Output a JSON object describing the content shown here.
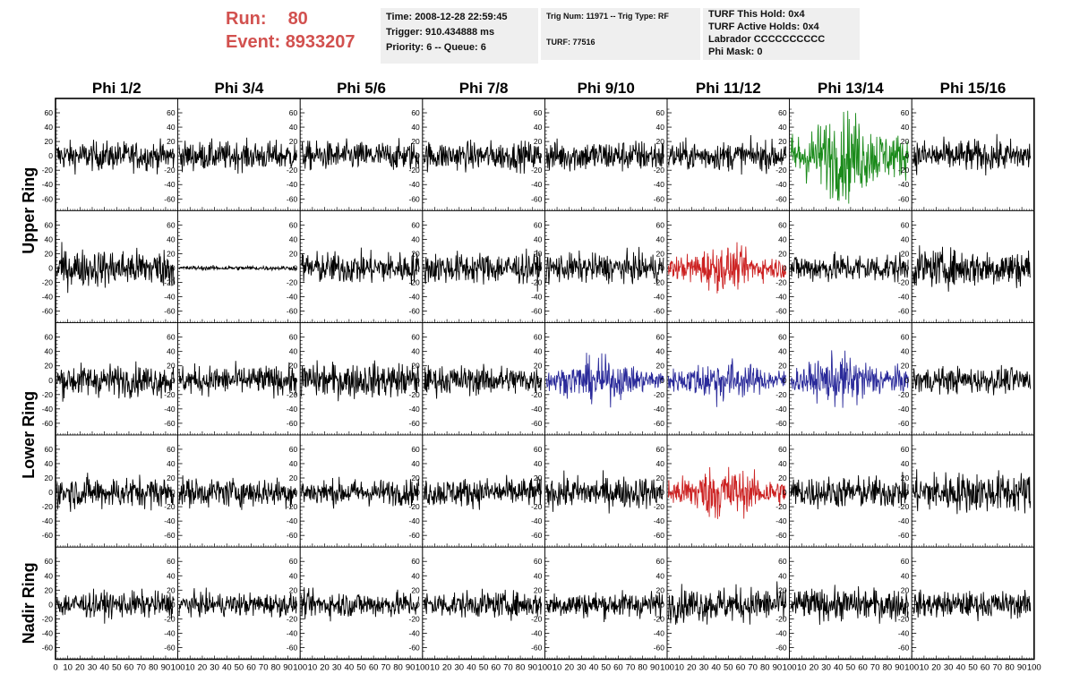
{
  "header": {
    "run_label": "Run:",
    "run_value": "80",
    "event_label": "Event:",
    "event_value": "8933207",
    "time": "Time: 2008-12-28 22:59:45",
    "trigger": "Trigger: 910.434888 ms",
    "priority": "Priority: 6 -- Queue: 6",
    "trig_num": "Trig Num: 11971 -- Trig Type: RF",
    "turf": "TURF: 77516",
    "turf_hold": "TURF This Hold: 0x4",
    "turf_active": "TURF Active Holds: 0x4",
    "labrador": "Labrador CCCCCCCCCC",
    "phi_mask": "Phi Mask: 0"
  },
  "chart_data": {
    "type": "line",
    "columns": [
      "Phi 1/2",
      "Phi 3/4",
      "Phi 5/6",
      "Phi 7/8",
      "Phi 9/10",
      "Phi 11/12",
      "Phi 13/14",
      "Phi 15/16"
    ],
    "row_labels": [
      "Upper Ring",
      "Lower Ring",
      "Nadir Ring"
    ],
    "row_label_spans": [
      [
        0,
        1
      ],
      [
        2,
        3
      ],
      [
        4,
        4
      ]
    ],
    "xlim": [
      0,
      100
    ],
    "ylim": [
      -70,
      70
    ],
    "x_ticks": [
      0,
      10,
      20,
      30,
      40,
      50,
      60,
      70,
      80,
      90,
      100
    ],
    "y_ticks": [
      -60,
      -40,
      -20,
      0,
      20,
      40,
      60
    ],
    "n_samples": 256,
    "colors": {
      "normal": "#000000",
      "green": "#1a8a1a",
      "red": "#cc2222",
      "blue": "#2a2a9a"
    },
    "amplitudes": [
      [
        10,
        10,
        10,
        10,
        11,
        10,
        24,
        11
      ],
      [
        13,
        1.5,
        11,
        11,
        10,
        12,
        10,
        13
      ],
      [
        11,
        10,
        12,
        10,
        12,
        12,
        14,
        9
      ],
      [
        11,
        10,
        9,
        10,
        11,
        15,
        11,
        14
      ],
      [
        9,
        8,
        9,
        9,
        9,
        12,
        11,
        9
      ]
    ],
    "trace_colors": [
      [
        "normal",
        "normal",
        "normal",
        "normal",
        "normal",
        "normal",
        "green",
        "normal"
      ],
      [
        "normal",
        "normal",
        "normal",
        "normal",
        "normal",
        "red",
        "normal",
        "normal"
      ],
      [
        "normal",
        "normal",
        "normal",
        "normal",
        "blue",
        "blue",
        "blue",
        "normal"
      ],
      [
        "normal",
        "normal",
        "normal",
        "normal",
        "normal",
        "red",
        "normal",
        "normal"
      ],
      [
        "normal",
        "normal",
        "normal",
        "normal",
        "normal",
        "normal",
        "normal",
        "normal"
      ]
    ]
  }
}
